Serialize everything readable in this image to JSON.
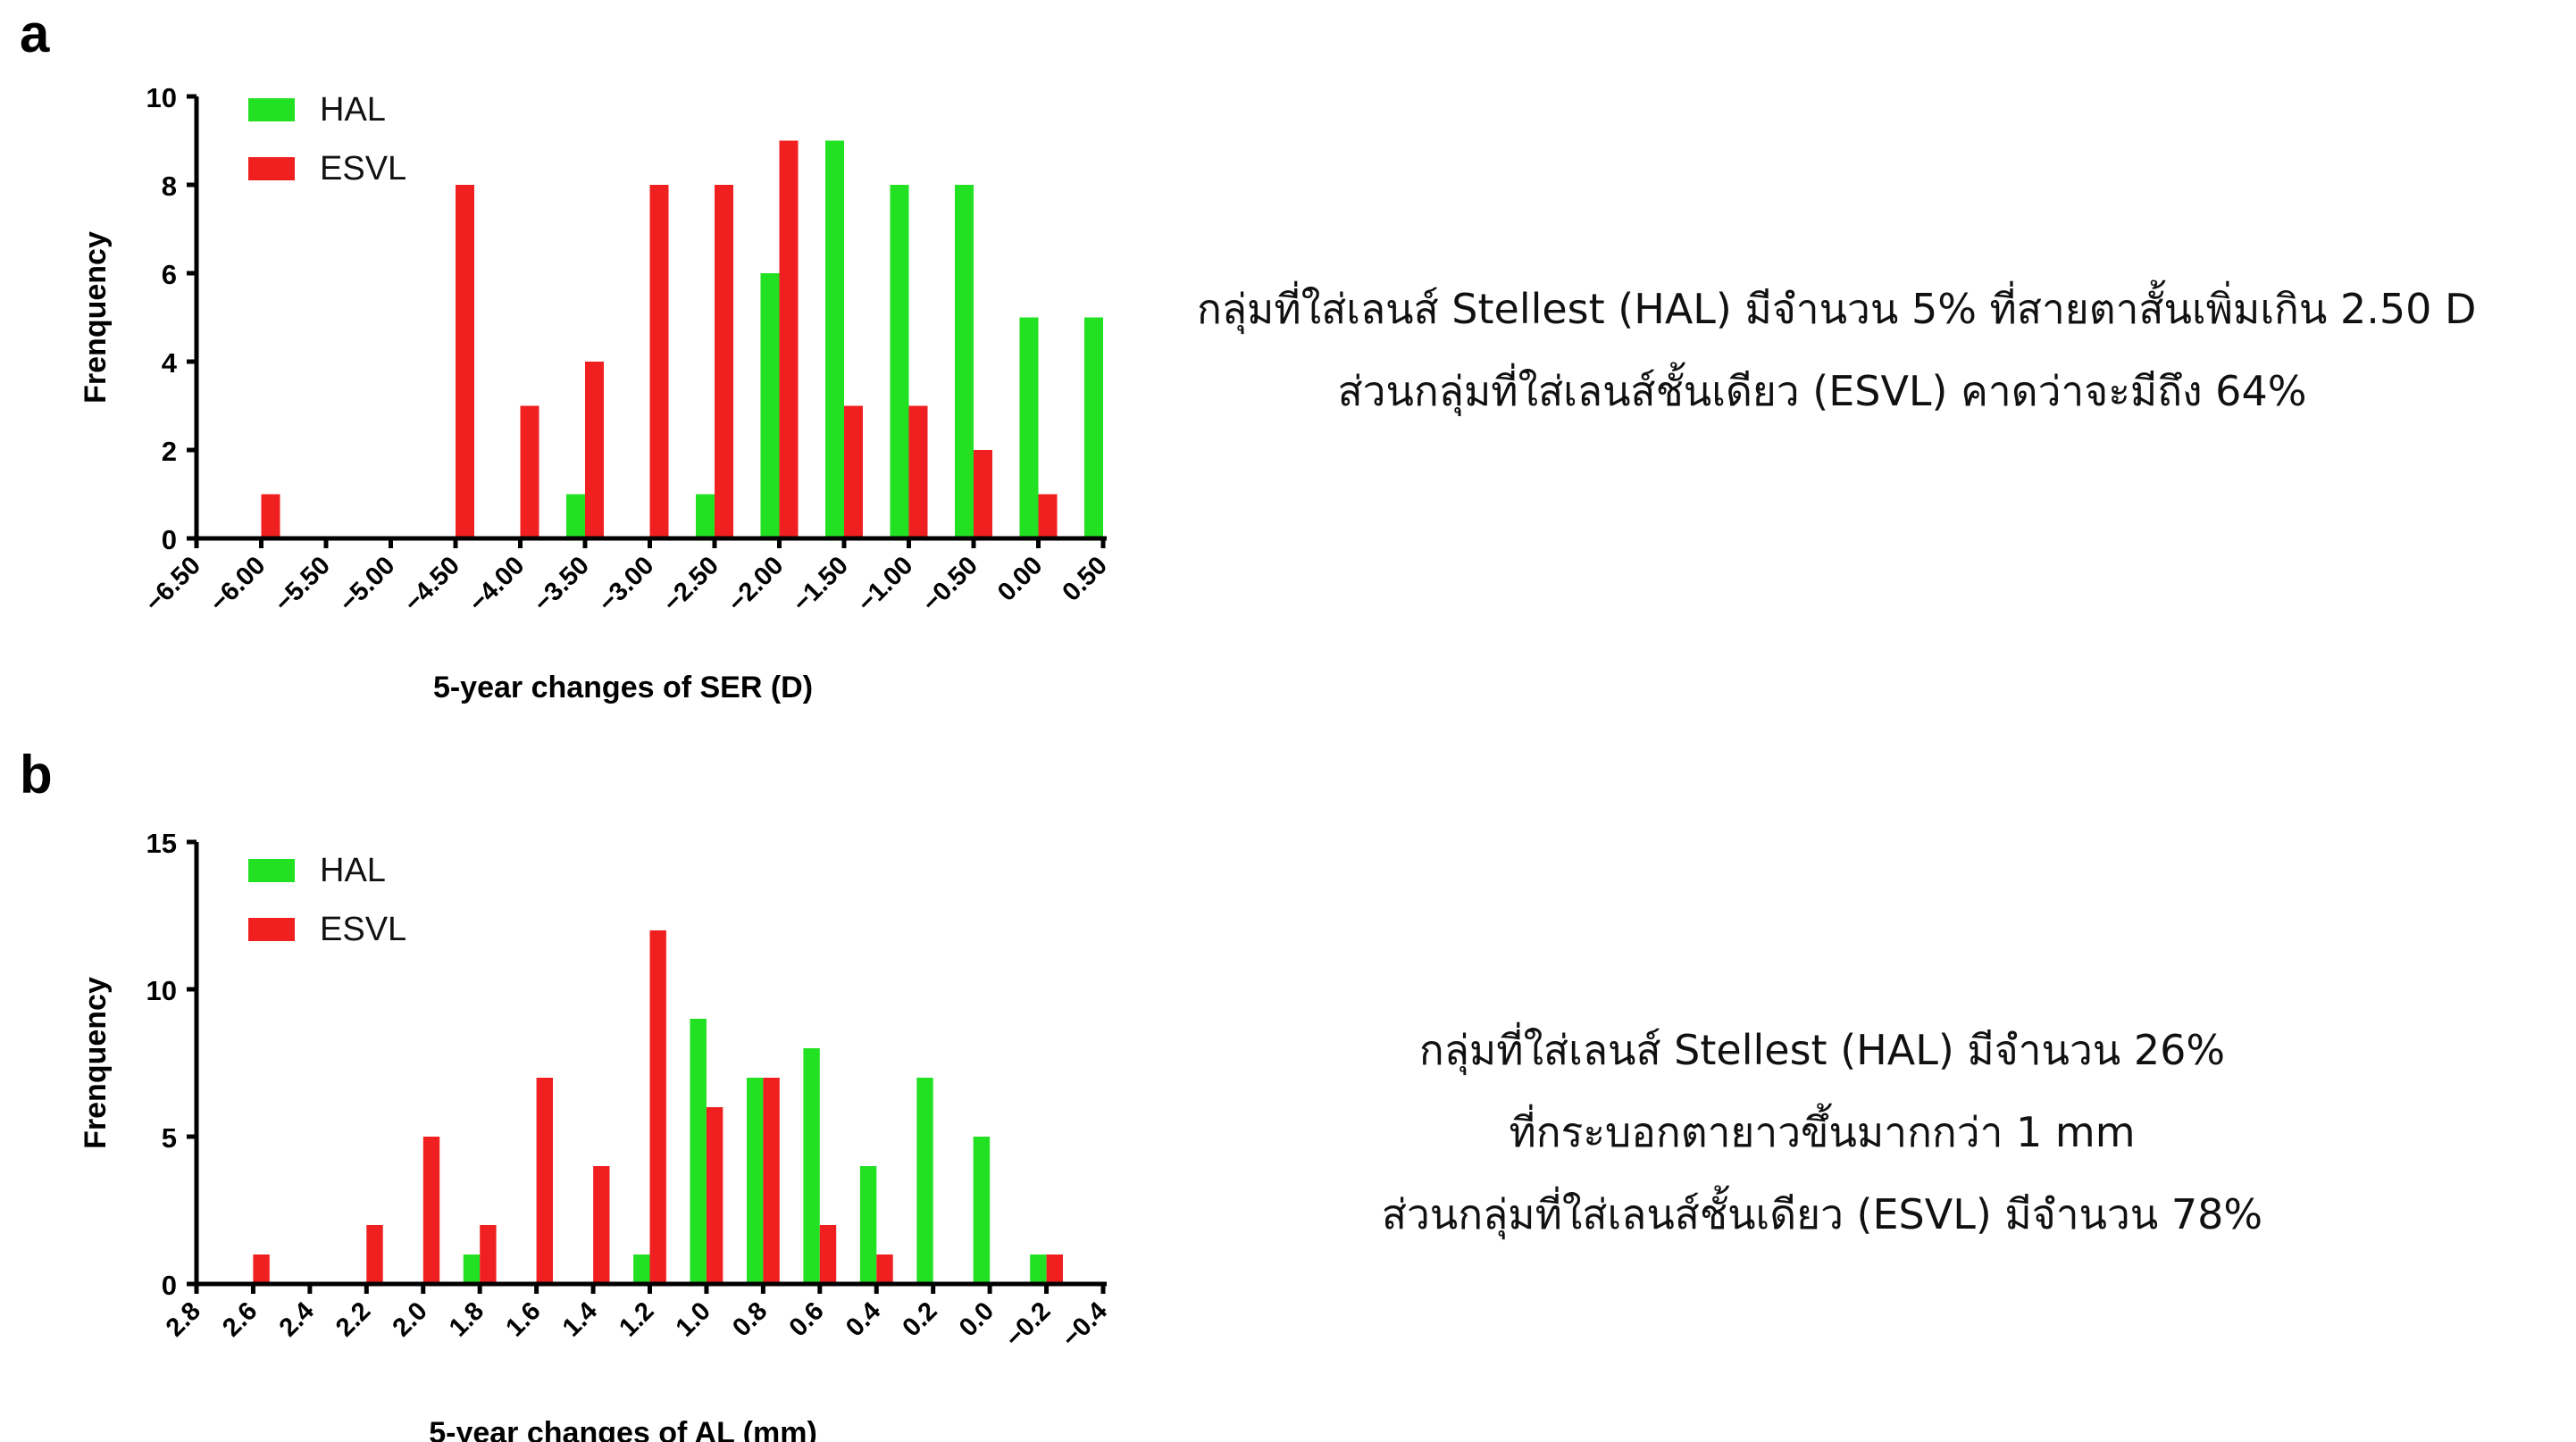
{
  "panels": [
    {
      "letter": "a",
      "note_lines": [
        "กลุ่มที่ใส่เลนส์ Stellest (HAL) มีจำนวน 5% ที่สายตาสั้นเพิ่มเกิน 2.50 D",
        "ส่วนกลุ่มที่ใส่เลนส์ชั้นเดียว (ESVL) คาดว่าจะมีถึง 64%"
      ]
    },
    {
      "letter": "b",
      "note_lines": [
        "กลุ่มที่ใส่เลนส์ Stellest (HAL) มีจำนวน 26%",
        "ที่กระบอกตายาวขึ้นมากกว่า 1 mm",
        "ส่วนกลุ่มที่ใส่เลนส์ชั้นเดียว (ESVL) มีจำนวน 78%"
      ]
    }
  ],
  "colors": {
    "HAL": "#22e022",
    "ESVL": "#f02020"
  },
  "chart_data": [
    {
      "type": "bar",
      "xlabel": "5-year changes of SER (D)",
      "ylabel": "Frenquency",
      "ylim": [
        0,
        10
      ],
      "yticks": [
        "0",
        "2",
        "4",
        "6",
        "8",
        "10"
      ],
      "xticks": [
        "−6.50",
        "−6.00",
        "−5.50",
        "−5.00",
        "−4.50",
        "−4.00",
        "−3.50",
        "−3.00",
        "−2.50",
        "−2.00",
        "−1.50",
        "−1.00",
        "−0.50",
        "0.00",
        "0.50"
      ],
      "legend_position": "top-left",
      "series": [
        {
          "name": "HAL",
          "x": [
            -3.5,
            -2.5,
            -2.0,
            -1.5,
            -1.0,
            -0.5,
            0.0,
            0.5
          ],
          "values": [
            1,
            1,
            6,
            9,
            8,
            8,
            5,
            5
          ]
        },
        {
          "name": "ESVL",
          "x": [
            -6.0,
            -4.5,
            -4.0,
            -3.5,
            -3.0,
            -2.5,
            -2.0,
            -1.5,
            -1.0,
            -0.5,
            0.0
          ],
          "values": [
            1,
            8,
            3,
            4,
            8,
            8,
            9,
            3,
            3,
            2,
            1
          ]
        }
      ]
    },
    {
      "type": "bar",
      "xlabel": "5-year changes of AL (mm)",
      "ylabel": "Frenquency",
      "ylim": [
        0,
        15
      ],
      "yticks": [
        "0",
        "5",
        "10",
        "15"
      ],
      "xticks": [
        "2.8",
        "2.6",
        "2.4",
        "2.2",
        "2.0",
        "1.8",
        "1.6",
        "1.4",
        "1.2",
        "1.0",
        "0.8",
        "0.6",
        "0.4",
        "0.2",
        "0.0",
        "−0.2",
        "−0.4"
      ],
      "legend_position": "top-left",
      "series": [
        {
          "name": "HAL",
          "x": [
            1.8,
            1.2,
            1.0,
            0.8,
            0.6,
            0.4,
            0.2,
            0.0,
            -0.2
          ],
          "values": [
            1,
            1,
            9,
            7,
            8,
            4,
            7,
            5,
            1
          ]
        },
        {
          "name": "ESVL",
          "x": [
            2.6,
            2.2,
            2.0,
            1.8,
            1.6,
            1.4,
            1.2,
            1.0,
            0.8,
            0.6,
            0.4,
            -0.2
          ],
          "values": [
            1,
            2,
            5,
            2,
            7,
            4,
            12,
            6,
            7,
            2,
            1,
            1
          ]
        }
      ]
    }
  ]
}
